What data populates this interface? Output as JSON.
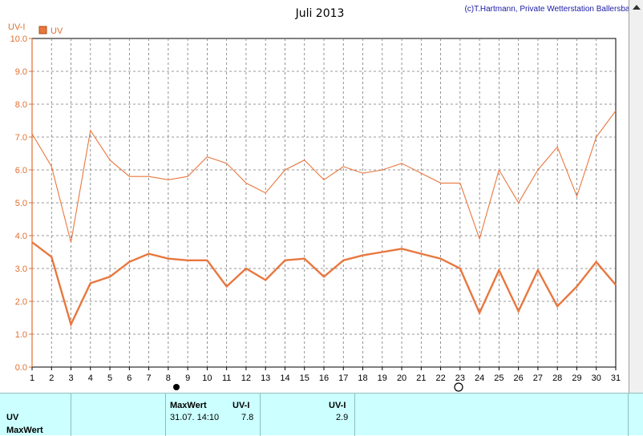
{
  "chart_data": {
    "type": "line",
    "title": "Juli 2013",
    "credit": "(c)T.Hartmann, Private Wetterstation Ballersbach",
    "ylabel": "UV-I",
    "legend": "UV",
    "ylim": [
      0,
      10
    ],
    "yticks": [
      "0.0",
      "1.0",
      "2.0",
      "3.0",
      "4.0",
      "5.0",
      "6.0",
      "7.0",
      "8.0",
      "9.0",
      "10.0"
    ],
    "x": [
      "1",
      "2",
      "3",
      "4",
      "5",
      "6",
      "7",
      "8",
      "9",
      "10",
      "11",
      "12",
      "13",
      "14",
      "15",
      "16",
      "17",
      "18",
      "19",
      "20",
      "21",
      "22",
      "23",
      "24",
      "25",
      "26",
      "27",
      "28",
      "29",
      "30",
      "31"
    ],
    "series": [
      {
        "name": "",
        "values": [
          7.1,
          6.1,
          3.8,
          7.2,
          6.3,
          5.8,
          5.8,
          5.7,
          5.8,
          6.4,
          6.2,
          5.6,
          5.3,
          6.0,
          6.3,
          5.7,
          6.1,
          5.9,
          6.0,
          6.2,
          5.9,
          5.6,
          5.6,
          3.9,
          6.0,
          5.0,
          6.0,
          6.7,
          5.2,
          7.0,
          7.8
        ]
      },
      {
        "name": "",
        "values": [
          3.8,
          3.35,
          1.3,
          2.55,
          2.75,
          3.2,
          3.45,
          3.3,
          3.25,
          3.25,
          2.45,
          3.0,
          2.65,
          3.25,
          3.3,
          2.75,
          3.25,
          3.4,
          3.5,
          3.6,
          3.45,
          3.3,
          3.0,
          1.65,
          2.95,
          1.7,
          2.95,
          1.85,
          2.45,
          3.2,
          2.5
        ]
      }
    ],
    "grid": true,
    "colors": {
      "line": "#e8773e",
      "grid": "#777777",
      "axis": "#e07030"
    }
  },
  "summary": {
    "row1_label": "UV",
    "row2_label": "MaxWert",
    "max_header": "MaxWert",
    "unit_header1": "UV-I",
    "unit_header2": "UV-I",
    "max_datetime": "31.07.  14:10",
    "max_value": "7.8",
    "avg_value": "2.9"
  }
}
